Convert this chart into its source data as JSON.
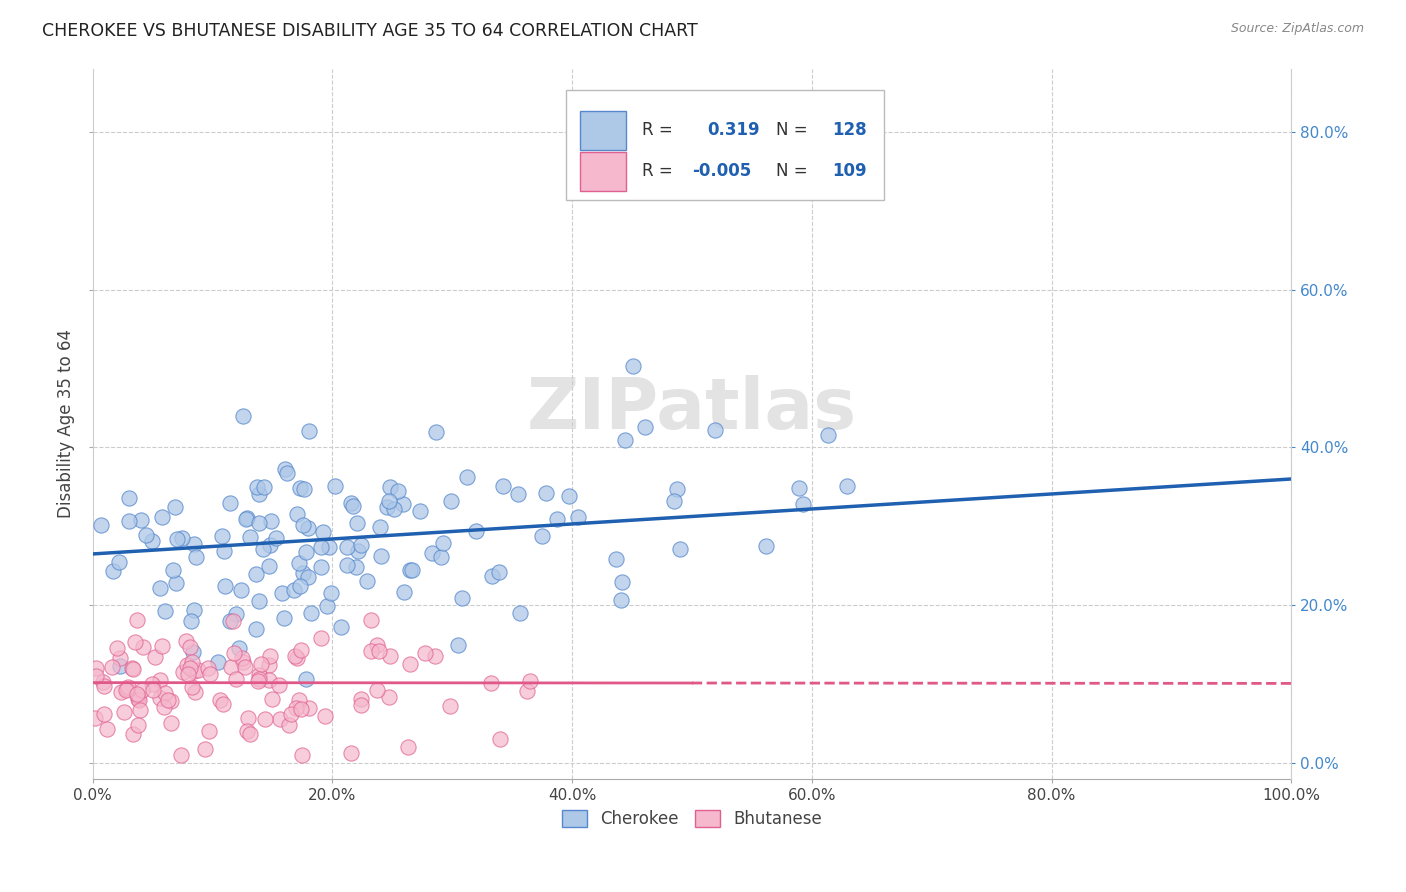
{
  "title": "CHEROKEE VS BHUTANESE DISABILITY AGE 35 TO 64 CORRELATION CHART",
  "source": "Source: ZipAtlas.com",
  "ylabel": "Disability Age 35 to 64",
  "cherokee_R": 0.319,
  "cherokee_N": 128,
  "bhutanese_R": -0.005,
  "bhutanese_N": 109,
  "cherokee_color": "#aec8e8",
  "cherokee_edge_color": "#5588cc",
  "bhutanese_color": "#f5b8cc",
  "bhutanese_edge_color": "#e06090",
  "cherokee_line_color": "#2060b0",
  "bhutanese_line_color": "#e05888",
  "background_color": "#ffffff",
  "grid_color": "#cccccc",
  "xlim": [
    0,
    1
  ],
  "ylim": [
    -0.02,
    0.88
  ],
  "seed": 77
}
